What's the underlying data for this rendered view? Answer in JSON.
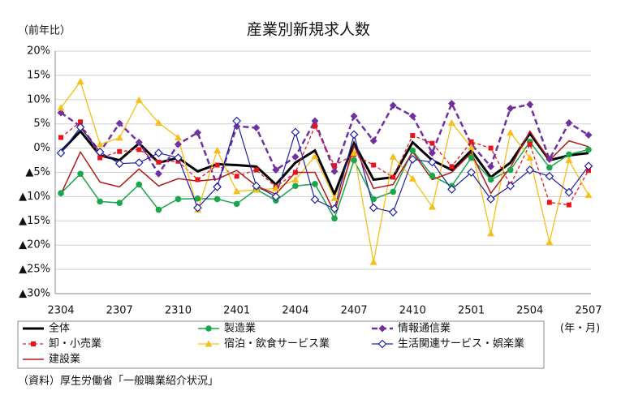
{
  "chart_data": {
    "type": "line",
    "title": "産業別新規求人数",
    "y_label": "（前年比）",
    "x_label": "(年・月)",
    "source": "（資料）厚生労働省「一般職業紹介状況」",
    "categories": [
      "2304",
      null,
      null,
      "2307",
      null,
      null,
      "2310",
      null,
      null,
      "2401",
      null,
      null,
      "2404",
      null,
      null,
      "2407",
      null,
      null,
      "2410",
      null,
      null,
      "2501",
      null,
      null,
      "2504",
      null,
      null,
      "2507"
    ],
    "ylim": [
      -30,
      20
    ],
    "yticks": [
      {
        "value": -30,
        "label": "▲30%"
      },
      {
        "value": -25,
        "label": "▲25%"
      },
      {
        "value": -20,
        "label": "▲20%"
      },
      {
        "value": -15,
        "label": "▲15%"
      },
      {
        "value": -10,
        "label": "▲10%"
      },
      {
        "value": -5,
        "label": "▲5%"
      },
      {
        "value": 0,
        "label": "0%"
      },
      {
        "value": 5,
        "label": "5%"
      },
      {
        "value": 10,
        "label": "10%"
      },
      {
        "value": 15,
        "label": "15%"
      },
      {
        "value": 20,
        "label": "20%"
      }
    ],
    "grid": true,
    "series": [
      {
        "name": "全体",
        "color": "#000000",
        "width": 3,
        "dash": "none",
        "marker": "none",
        "values": [
          -0.7,
          3.5,
          -1.5,
          -2.5,
          1,
          -3,
          -2,
          -4.8,
          -3.3,
          -3.5,
          -3.8,
          -7.5,
          -3,
          -0.5,
          -9.5,
          1,
          -6.5,
          -6,
          1.2,
          -2.5,
          -4.5,
          -0.5,
          -6,
          -3,
          3,
          -2.5,
          -1.5,
          -1
        ]
      },
      {
        "name": "製造業",
        "color": "#1aa64a",
        "width": 1.5,
        "dash": "none",
        "marker": "circle",
        "values": [
          -9.3,
          -5.3,
          -11,
          -11.3,
          -7.5,
          -12.7,
          -10.5,
          -10.4,
          -10.5,
          -11.5,
          -8.5,
          -10.8,
          -7.8,
          -7.4,
          -14.5,
          -2.5,
          -10.5,
          -9,
          -0.5,
          -5.7,
          -7.8,
          -2,
          -6.5,
          -4.5,
          1.3,
          -4,
          -1.3,
          -0.3
        ]
      },
      {
        "name": "情報通信業",
        "color": "#7030a0",
        "width": 2.5,
        "dash": "7 4",
        "marker": "diamond",
        "values": [
          7.3,
          4.5,
          -0.8,
          5.1,
          1.2,
          -5.3,
          0.8,
          3.2,
          -7.8,
          4.5,
          4.2,
          -4.5,
          -1.8,
          5.6,
          -4.8,
          6.6,
          1.5,
          8.8,
          6.6,
          -1,
          9.2,
          0.8,
          -3.8,
          8.2,
          9,
          -2.3,
          5.2,
          2.7
        ]
      },
      {
        "name": "卸・小売業",
        "color": "#e8141b",
        "width": 1.3,
        "dash": "4 3",
        "marker": "square",
        "values": [
          2.2,
          5.4,
          -2,
          -0.7,
          -0.3,
          -2.9,
          -2.7,
          -6.5,
          -3.5,
          -5.8,
          -4.5,
          -8,
          -5,
          4.5,
          -3.6,
          -1.3,
          -3.5,
          -6,
          2.6,
          1,
          -3.8,
          1.3,
          0,
          -7.6,
          0.8,
          -11.2,
          -11.7,
          -4.6
        ]
      },
      {
        "name": "宿泊・飲食サービス業",
        "color": "#f5be18",
        "width": 1.3,
        "dash": "none",
        "marker": "triangle",
        "values": [
          8.3,
          13.7,
          0.8,
          2.1,
          9.9,
          5.2,
          2.2,
          -12.7,
          -0.5,
          -8.9,
          -8.6,
          -8.3,
          -6.5,
          -1.7,
          -10.3,
          -1,
          -23.5,
          -1.8,
          -6.3,
          -12.1,
          5.2,
          0.2,
          -17.6,
          3.2,
          -2,
          -19.4,
          -2.5,
          -9.7
        ]
      },
      {
        "name": "生活関連サービス・娯楽業",
        "color": "#1f1fa8",
        "width": 1.2,
        "dash": "none",
        "marker": "open-diamond",
        "values": [
          -1,
          4.3,
          -0.8,
          -3.2,
          -3,
          -1,
          -2,
          -12.3,
          -8,
          5.6,
          -7.8,
          -10,
          3.3,
          -10.6,
          -12.5,
          2.8,
          -12.3,
          -13.2,
          -2.3,
          -2.9,
          -8.5,
          -5,
          -10.5,
          -7.8,
          -4.5,
          -5.8,
          -9.1,
          -3.7
        ]
      },
      {
        "name": "建設業",
        "color": "#b01a1a",
        "width": 1.5,
        "dash": "none",
        "marker": "none",
        "values": [
          -9.5,
          -0.8,
          -7,
          -8,
          -4.3,
          -7.8,
          -6.3,
          -6.8,
          -6.4,
          -4.6,
          -7.8,
          -9.5,
          -5,
          -5,
          -13.3,
          0.5,
          -8.3,
          -7.5,
          -0.8,
          -6.5,
          -5,
          -1,
          -9.3,
          -4,
          3.5,
          -2.5,
          1.5,
          0.3
        ]
      }
    ]
  }
}
